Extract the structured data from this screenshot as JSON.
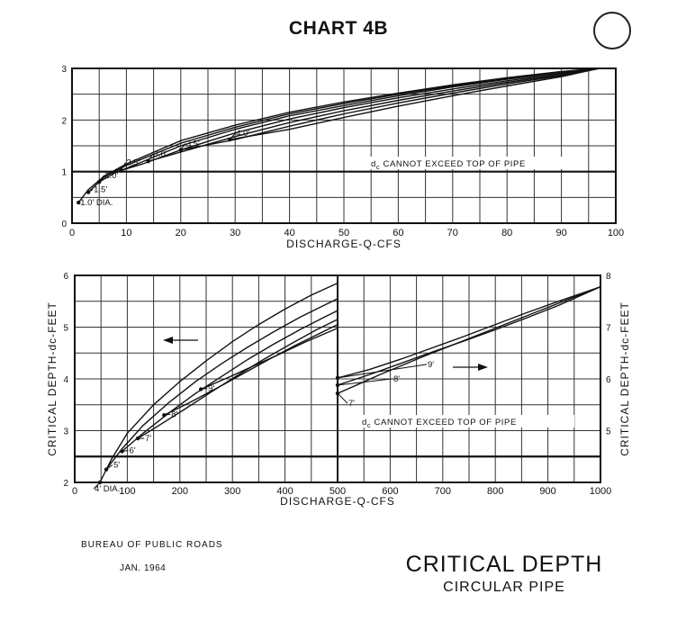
{
  "header": {
    "title": "CHART 4B"
  },
  "footer": {
    "bureau": "BUREAU OF PUBLIC ROADS",
    "date": "JAN. 1964",
    "title": "CRITICAL DEPTH",
    "subtitle": "CIRCULAR PIPE"
  },
  "chart_data": [
    {
      "type": "line",
      "xlabel": "DISCHARGE-Q-CFS",
      "xlim": [
        0,
        100
      ],
      "ylim": [
        0,
        3
      ],
      "x_ticks": [
        "0",
        "10",
        "20",
        "30",
        "40",
        "50",
        "60",
        "70",
        "80",
        "90",
        "100"
      ],
      "y_ticks": [
        "0",
        "1",
        "2",
        "3"
      ],
      "grid": true,
      "annotation": "dc CANNOT EXCEED TOP OF PIPE",
      "series": [
        {
          "name": "1.0' DIA.",
          "points": [
            [
              1.2,
              0.4
            ],
            [
              3,
              0.65
            ],
            [
              6,
              0.92
            ],
            [
              10,
              1.15
            ],
            [
              20,
              1.6
            ],
            [
              30,
              1.9
            ],
            [
              40,
              2.15
            ],
            [
              50,
              2.35
            ],
            [
              60,
              2.52
            ],
            [
              70,
              2.68
            ],
            [
              80,
              2.82
            ],
            [
              90,
              2.94
            ],
            [
              97,
              3.0
            ]
          ]
        },
        {
          "name": "1.5'",
          "points": [
            [
              3,
              0.6
            ],
            [
              6,
              0.9
            ],
            [
              10,
              1.12
            ],
            [
              20,
              1.55
            ],
            [
              30,
              1.86
            ],
            [
              40,
              2.12
            ],
            [
              50,
              2.32
            ],
            [
              60,
              2.5
            ],
            [
              70,
              2.66
            ],
            [
              80,
              2.81
            ],
            [
              90,
              2.93
            ],
            [
              97,
              3.0
            ]
          ]
        },
        {
          "name": "2.0'",
          "points": [
            [
              5,
              0.8
            ],
            [
              8,
              0.98
            ],
            [
              12,
              1.15
            ],
            [
              20,
              1.5
            ],
            [
              30,
              1.82
            ],
            [
              40,
              2.08
            ],
            [
              50,
              2.28
            ],
            [
              60,
              2.47
            ],
            [
              70,
              2.64
            ],
            [
              80,
              2.79
            ],
            [
              90,
              2.92
            ],
            [
              97,
              3.0
            ]
          ]
        },
        {
          "name": "2.5'",
          "points": [
            [
              9,
              1.02
            ],
            [
              13,
              1.15
            ],
            [
              20,
              1.42
            ],
            [
              30,
              1.75
            ],
            [
              40,
              2.02
            ],
            [
              50,
              2.24
            ],
            [
              60,
              2.43
            ],
            [
              70,
              2.6
            ],
            [
              80,
              2.76
            ],
            [
              90,
              2.9
            ],
            [
              97,
              3.0
            ]
          ]
        },
        {
          "name": "3.0'",
          "points": [
            [
              14,
              1.2
            ],
            [
              20,
              1.38
            ],
            [
              30,
              1.68
            ],
            [
              40,
              1.95
            ],
            [
              50,
              2.18
            ],
            [
              60,
              2.38
            ],
            [
              70,
              2.56
            ],
            [
              80,
              2.73
            ],
            [
              90,
              2.88
            ],
            [
              97,
              3.0
            ]
          ]
        },
        {
          "name": "3.5'",
          "points": [
            [
              20,
              1.42
            ],
            [
              30,
              1.62
            ],
            [
              40,
              1.88
            ],
            [
              50,
              2.12
            ],
            [
              60,
              2.33
            ],
            [
              70,
              2.52
            ],
            [
              80,
              2.7
            ],
            [
              90,
              2.86
            ],
            [
              97,
              3.0
            ]
          ]
        },
        {
          "name": "4.0'",
          "points": [
            [
              29,
              1.62
            ],
            [
              40,
              1.82
            ],
            [
              50,
              2.05
            ],
            [
              60,
              2.27
            ],
            [
              70,
              2.47
            ],
            [
              80,
              2.66
            ],
            [
              90,
              2.84
            ],
            [
              97,
              3.0
            ]
          ]
        }
      ],
      "series_labels": [
        "1.0' DIA.",
        "1.5'",
        "2.0'",
        "2.5'",
        "3.0'",
        "3.5'",
        "4.0'"
      ]
    },
    {
      "type": "line",
      "xlabel": "DISCHARGE-Q-CFS",
      "ylabel": "CRITICAL DEPTH-dc-FEET",
      "xlim": [
        0,
        500
      ],
      "ylim": [
        2,
        6
      ],
      "x_ticks": [
        "0",
        "100",
        "200",
        "300",
        "400",
        "500"
      ],
      "y_ticks": [
        "2",
        "3",
        "4",
        "5",
        "6"
      ],
      "grid": true,
      "direction_arrow": "left",
      "series": [
        {
          "name": "4' DIA.",
          "points": [
            [
              48,
              2.0
            ],
            [
              70,
              2.45
            ],
            [
              100,
              2.95
            ],
            [
              150,
              3.5
            ],
            [
              200,
              3.95
            ],
            [
              250,
              4.35
            ],
            [
              300,
              4.72
            ],
            [
              350,
              5.05
            ],
            [
              400,
              5.35
            ],
            [
              450,
              5.62
            ],
            [
              500,
              5.85
            ]
          ]
        },
        {
          "name": "5'",
          "points": [
            [
              60,
              2.25
            ],
            [
              90,
              2.65
            ],
            [
              130,
              3.1
            ],
            [
              180,
              3.55
            ],
            [
              230,
              3.95
            ],
            [
              280,
              4.3
            ],
            [
              330,
              4.62
            ],
            [
              380,
              4.92
            ],
            [
              430,
              5.2
            ],
            [
              480,
              5.45
            ],
            [
              500,
              5.55
            ]
          ]
        },
        {
          "name": "6'",
          "points": [
            [
              90,
              2.6
            ],
            [
              130,
              2.95
            ],
            [
              180,
              3.35
            ],
            [
              230,
              3.72
            ],
            [
              280,
              4.05
            ],
            [
              330,
              4.38
            ],
            [
              380,
              4.68
            ],
            [
              430,
              4.96
            ],
            [
              480,
              5.22
            ],
            [
              500,
              5.32
            ]
          ]
        },
        {
          "name": "7'",
          "points": [
            [
              120,
              2.85
            ],
            [
              160,
              3.1
            ],
            [
              210,
              3.42
            ],
            [
              260,
              3.75
            ],
            [
              310,
              4.07
            ],
            [
              360,
              4.38
            ],
            [
              410,
              4.67
            ],
            [
              460,
              4.95
            ],
            [
              500,
              5.15
            ]
          ]
        },
        {
          "name": "8'",
          "points": [
            [
              170,
              3.3
            ],
            [
              220,
              3.55
            ],
            [
              270,
              3.82
            ],
            [
              320,
              4.1
            ],
            [
              370,
              4.38
            ],
            [
              420,
              4.65
            ],
            [
              470,
              4.9
            ],
            [
              500,
              5.05
            ]
          ]
        },
        {
          "name": "9'",
          "points": [
            [
              240,
              3.8
            ],
            [
              290,
              4.02
            ],
            [
              340,
              4.25
            ],
            [
              390,
              4.48
            ],
            [
              440,
              4.72
            ],
            [
              500,
              4.98
            ]
          ]
        }
      ],
      "series_labels": [
        "4' DIA.",
        "5'",
        "6'",
        "7'",
        "8'",
        "9'"
      ]
    },
    {
      "type": "line",
      "xlabel": "DISCHARGE-Q-CFS",
      "ylabel": "CRITICAL DEPTH-dc-FEET",
      "xlim": [
        500,
        1000
      ],
      "ylim": [
        4,
        8
      ],
      "x_ticks": [
        "500",
        "600",
        "700",
        "800",
        "900",
        "1000"
      ],
      "y_ticks": [
        "5",
        "6",
        "7",
        "8"
      ],
      "grid": true,
      "direction_arrow": "right",
      "annotation": "dc CANNOT EXCEED TOP OF PIPE",
      "series": [
        {
          "name": "7'",
          "points": [
            [
              500,
              5.72
            ],
            [
              540,
              5.9
            ],
            [
              580,
              6.08
            ],
            [
              620,
              6.25
            ],
            [
              660,
              6.42
            ],
            [
              700,
              6.58
            ],
            [
              750,
              6.78
            ],
            [
              800,
              6.98
            ],
            [
              850,
              7.18
            ],
            [
              900,
              7.38
            ],
            [
              950,
              7.58
            ],
            [
              1000,
              7.78
            ]
          ]
        },
        {
          "name": "8'",
          "points": [
            [
              500,
              5.88
            ],
            [
              560,
              6.08
            ],
            [
              620,
              6.3
            ],
            [
              680,
              6.52
            ],
            [
              740,
              6.73
            ],
            [
              800,
              6.95
            ],
            [
              860,
              7.18
            ],
            [
              920,
              7.42
            ],
            [
              1000,
              7.78
            ]
          ]
        },
        {
          "name": "9'",
          "points": [
            [
              500,
              6.02
            ],
            [
              560,
              6.18
            ],
            [
              620,
              6.38
            ],
            [
              680,
              6.6
            ],
            [
              740,
              6.82
            ],
            [
              800,
              7.05
            ],
            [
              860,
              7.28
            ],
            [
              920,
              7.5
            ],
            [
              1000,
              7.78
            ]
          ]
        }
      ],
      "series_labels": [
        "7'",
        "8'",
        "9'"
      ]
    }
  ]
}
